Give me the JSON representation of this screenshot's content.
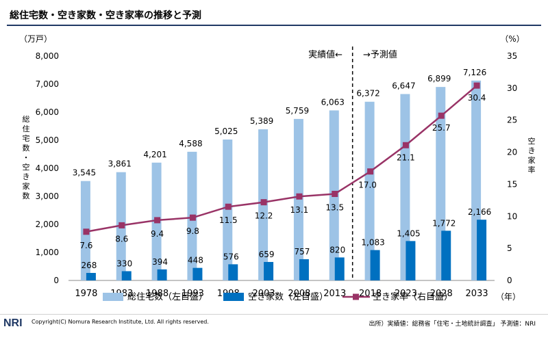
{
  "title": "総住宅数・空き家数・空き家率の推移と予測",
  "footer": {
    "logo": "NRI",
    "copyright": "Copyright(C) Nomura Research Institute, Ltd. All rights reserved.",
    "source": "出所）実績値：総務省「住宅・土地統計調査」 予測値：NRI"
  },
  "colors": {
    "total": "#9dc3e6",
    "vacant": "#0070c0",
    "rate": "#993366"
  },
  "chart_data": {
    "type": "bar",
    "categories": [
      "1978",
      "1983",
      "1988",
      "1993",
      "1998",
      "2003",
      "2008",
      "2013",
      "2018",
      "2023",
      "2028",
      "2033"
    ],
    "series": [
      {
        "name": "総住宅数（左目盛）",
        "type": "bar",
        "axis": "left",
        "values": [
          3545,
          3861,
          4201,
          4588,
          5025,
          5389,
          5759,
          6063,
          6372,
          6647,
          6899,
          7126
        ]
      },
      {
        "name": "空き家数（左目盛）",
        "type": "bar",
        "axis": "left",
        "values": [
          268,
          330,
          394,
          448,
          576,
          659,
          757,
          820,
          1083,
          1405,
          1772,
          2166
        ]
      },
      {
        "name": "空き家率（右目盛）",
        "type": "line",
        "axis": "right",
        "values": [
          7.6,
          8.6,
          9.4,
          9.8,
          11.5,
          12.2,
          13.1,
          13.5,
          17.0,
          21.1,
          25.7,
          30.4
        ]
      }
    ],
    "value_labels": {
      "total": [
        "3,545",
        "3,861",
        "4,201",
        "4,588",
        "5,025",
        "5,389",
        "5,759",
        "6,063",
        "6,372",
        "6,647",
        "6,899",
        "7,126"
      ],
      "vacant": [
        "268",
        "330",
        "394",
        "448",
        "576",
        "659",
        "757",
        "820",
        "1,083",
        "1,405",
        "1,772",
        "2,166"
      ],
      "rate": [
        "7.6",
        "8.6",
        "9.4",
        "9.8",
        "11.5",
        "12.2",
        "13.1",
        "13.5",
        "17.0",
        "21.1",
        "25.7",
        "30.4"
      ]
    },
    "left_axis": {
      "unit": "（万戸）",
      "label": "総住宅数・空き家数",
      "ylim": [
        0,
        8000
      ],
      "ticks": [
        "0",
        "1,000",
        "2,000",
        "3,000",
        "4,000",
        "5,000",
        "6,000",
        "7,000",
        "8,000"
      ]
    },
    "right_axis": {
      "unit": "（%）",
      "label": "空き家率",
      "ylim": [
        0,
        35
      ],
      "ticks": [
        "0",
        "5",
        "10",
        "15",
        "20",
        "25",
        "30",
        "35"
      ]
    },
    "x_unit": "（年）",
    "annotations": {
      "actual": "実績値←",
      "forecast": "→予測値"
    },
    "legend_position": "bottom",
    "grid": false
  }
}
